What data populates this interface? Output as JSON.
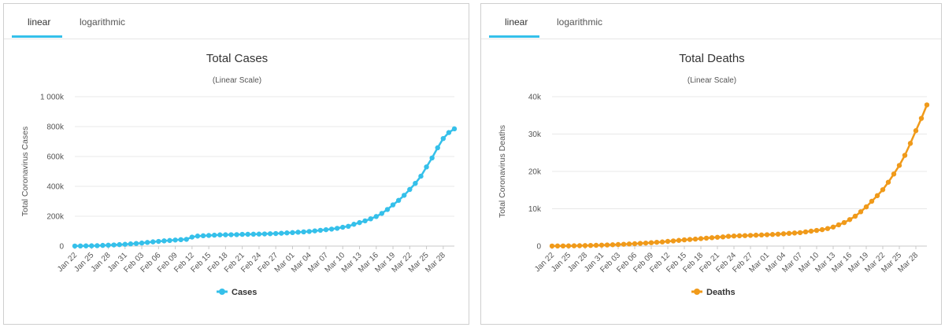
{
  "tabs": {
    "linear": "linear",
    "logarithmic": "logarithmic",
    "active": "linear"
  },
  "chart_data": [
    {
      "type": "line",
      "title": "Total Cases",
      "subtitle": "(Linear Scale)",
      "ylabel": "Total Coronavirus Cases",
      "color": "#35c0ea",
      "ylim": [
        0,
        1000000
      ],
      "yticks": [
        {
          "value": 0,
          "label": "0"
        },
        {
          "value": 200000,
          "label": "200k"
        },
        {
          "value": 400000,
          "label": "400k"
        },
        {
          "value": 600000,
          "label": "600k"
        },
        {
          "value": 800000,
          "label": "800k"
        },
        {
          "value": 1000000,
          "label": "1 000k"
        }
      ],
      "x_tick_labels": [
        "Jan 22",
        "Jan 25",
        "Jan 28",
        "Jan 31",
        "Feb 03",
        "Feb 06",
        "Feb 09",
        "Feb 12",
        "Feb 15",
        "Feb 18",
        "Feb 21",
        "Feb 24",
        "Feb 27",
        "Mar 01",
        "Mar 04",
        "Mar 07",
        "Mar 10",
        "Mar 13",
        "Mar 16",
        "Mar 19",
        "Mar 22",
        "Mar 25",
        "Mar 28"
      ],
      "x_tick_every": 3,
      "x": [
        "Jan 22",
        "Jan 23",
        "Jan 24",
        "Jan 25",
        "Jan 26",
        "Jan 27",
        "Jan 28",
        "Jan 29",
        "Jan 30",
        "Jan 31",
        "Feb 01",
        "Feb 02",
        "Feb 03",
        "Feb 04",
        "Feb 05",
        "Feb 06",
        "Feb 07",
        "Feb 08",
        "Feb 09",
        "Feb 10",
        "Feb 11",
        "Feb 12",
        "Feb 13",
        "Feb 14",
        "Feb 15",
        "Feb 16",
        "Feb 17",
        "Feb 18",
        "Feb 19",
        "Feb 20",
        "Feb 21",
        "Feb 22",
        "Feb 23",
        "Feb 24",
        "Feb 25",
        "Feb 26",
        "Feb 27",
        "Feb 28",
        "Feb 29",
        "Mar 01",
        "Mar 02",
        "Mar 03",
        "Mar 04",
        "Mar 05",
        "Mar 06",
        "Mar 07",
        "Mar 08",
        "Mar 09",
        "Mar 10",
        "Mar 11",
        "Mar 12",
        "Mar 13",
        "Mar 14",
        "Mar 15",
        "Mar 16",
        "Mar 17",
        "Mar 18",
        "Mar 19",
        "Mar 20",
        "Mar 21",
        "Mar 22",
        "Mar 23",
        "Mar 24",
        "Mar 25",
        "Mar 26",
        "Mar 27",
        "Mar 28",
        "Mar 29",
        "Mar 30"
      ],
      "series": [
        {
          "name": "Cases",
          "values": [
            580,
            845,
            1320,
            2010,
            2800,
            4580,
            6070,
            7820,
            9830,
            11950,
            14550,
            17390,
            20630,
            24550,
            28280,
            31480,
            34890,
            37560,
            40550,
            43100,
            45170,
            60380,
            67100,
            69200,
            71300,
            73260,
            75150,
            75650,
            76200,
            76840,
            78580,
            78970,
            79560,
            80400,
            81400,
            82750,
            84120,
            86000,
            88370,
            90300,
            92840,
            95120,
            97890,
            101800,
            105800,
            109800,
            113590,
            119000,
            126100,
            132580,
            146000,
            157300,
            169000,
            182500,
            198000,
            219000,
            245000,
            276000,
            306000,
            340000,
            379000,
            420000,
            468000,
            530000,
            590000,
            658000,
            720000,
            760000,
            785000
          ]
        }
      ]
    },
    {
      "type": "line",
      "title": "Total Deaths",
      "subtitle": "(Linear Scale)",
      "ylabel": "Total Coronavirus Deaths",
      "color": "#f09a1a",
      "ylim": [
        0,
        40000
      ],
      "yticks": [
        {
          "value": 0,
          "label": "0"
        },
        {
          "value": 10000,
          "label": "10k"
        },
        {
          "value": 20000,
          "label": "20k"
        },
        {
          "value": 30000,
          "label": "30k"
        },
        {
          "value": 40000,
          "label": "40k"
        }
      ],
      "x_tick_labels": [
        "Jan 22",
        "Jan 25",
        "Jan 28",
        "Jan 31",
        "Feb 03",
        "Feb 06",
        "Feb 09",
        "Feb 12",
        "Feb 15",
        "Feb 18",
        "Feb 21",
        "Feb 24",
        "Feb 27",
        "Mar 01",
        "Mar 04",
        "Mar 07",
        "Mar 10",
        "Mar 13",
        "Mar 16",
        "Mar 19",
        "Mar 22",
        "Mar 25",
        "Mar 28"
      ],
      "x_tick_every": 3,
      "x": [
        "Jan 22",
        "Jan 23",
        "Jan 24",
        "Jan 25",
        "Jan 26",
        "Jan 27",
        "Jan 28",
        "Jan 29",
        "Jan 30",
        "Jan 31",
        "Feb 01",
        "Feb 02",
        "Feb 03",
        "Feb 04",
        "Feb 05",
        "Feb 06",
        "Feb 07",
        "Feb 08",
        "Feb 09",
        "Feb 10",
        "Feb 11",
        "Feb 12",
        "Feb 13",
        "Feb 14",
        "Feb 15",
        "Feb 16",
        "Feb 17",
        "Feb 18",
        "Feb 19",
        "Feb 20",
        "Feb 21",
        "Feb 22",
        "Feb 23",
        "Feb 24",
        "Feb 25",
        "Feb 26",
        "Feb 27",
        "Feb 28",
        "Feb 29",
        "Mar 01",
        "Mar 02",
        "Mar 03",
        "Mar 04",
        "Mar 05",
        "Mar 06",
        "Mar 07",
        "Mar 08",
        "Mar 09",
        "Mar 10",
        "Mar 11",
        "Mar 12",
        "Mar 13",
        "Mar 14",
        "Mar 15",
        "Mar 16",
        "Mar 17",
        "Mar 18",
        "Mar 19",
        "Mar 20",
        "Mar 21",
        "Mar 22",
        "Mar 23",
        "Mar 24",
        "Mar 25",
        "Mar 26",
        "Mar 27",
        "Mar 28",
        "Mar 29",
        "Mar 30"
      ],
      "series": [
        {
          "name": "Deaths",
          "values": [
            17,
            25,
            41,
            56,
            80,
            106,
            132,
            170,
            213,
            259,
            304,
            362,
            426,
            492,
            565,
            638,
            724,
            813,
            910,
            1018,
            1115,
            1261,
            1383,
            1526,
            1669,
            1775,
            1873,
            2009,
            2126,
            2247,
            2360,
            2460,
            2618,
            2699,
            2763,
            2800,
            2858,
            2923,
            2977,
            3050,
            3110,
            3200,
            3290,
            3400,
            3500,
            3600,
            3800,
            4000,
            4200,
            4400,
            4700,
            5100,
            5700,
            6300,
            7100,
            8000,
            9200,
            10500,
            12000,
            13500,
            15100,
            17100,
            19300,
            21600,
            24300,
            27500,
            30900,
            34200,
            37800
          ]
        }
      ]
    }
  ]
}
